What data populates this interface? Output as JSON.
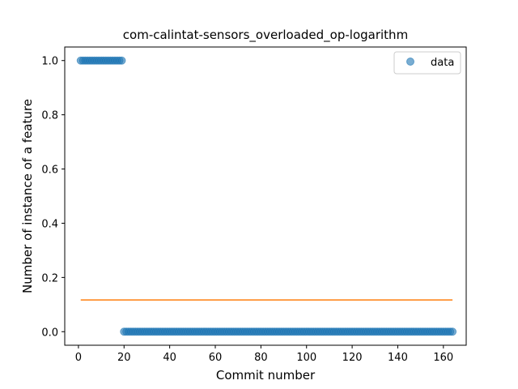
{
  "chart_data": {
    "type": "scatter",
    "title": "com-calintat-sensors_overloaded_op-logarithm",
    "xlabel": "Commit number",
    "ylabel": "Number of instance of a feature",
    "xlim": [
      -6,
      170
    ],
    "ylim": [
      -0.05,
      1.05
    ],
    "xticks": [
      0,
      20,
      40,
      60,
      80,
      100,
      120,
      140,
      160
    ],
    "yticks": [
      0.0,
      0.2,
      0.4,
      0.6,
      0.8,
      1.0
    ],
    "ytick_labels": [
      "0.0",
      "0.2",
      "0.4",
      "0.6",
      "0.8",
      "1.0"
    ],
    "legend": {
      "position": "top-right",
      "entries": [
        "data"
      ]
    },
    "colors": {
      "data": "#1f77b4",
      "fit": "#ff7f0e"
    },
    "series": [
      {
        "name": "data",
        "kind": "points",
        "segments": [
          {
            "x_start": 1,
            "x_end": 19,
            "y": 1.0
          },
          {
            "x_start": 20,
            "x_end": 164,
            "y": 0.0
          }
        ]
      },
      {
        "name": "fit",
        "kind": "line",
        "x": [
          1,
          164
        ],
        "y": [
          0.117,
          0.117
        ]
      }
    ]
  }
}
